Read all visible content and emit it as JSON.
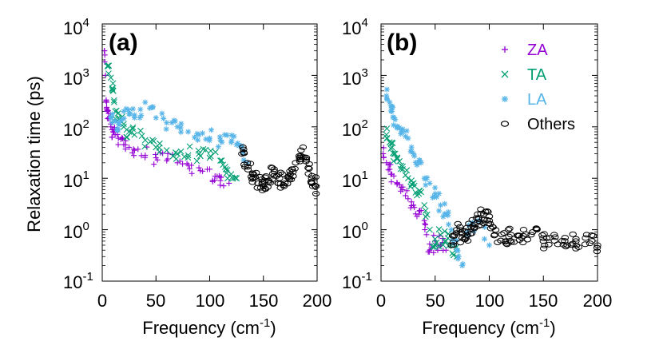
{
  "figure": {
    "ylabel": "Relaxation  time (ps)",
    "yaxis": {
      "scale": "log",
      "ylim": [
        0.1,
        10000
      ]
    }
  },
  "legend": {
    "placement": "top-right of panel (b)",
    "entries": [
      {
        "key": "ZA",
        "label": "ZA",
        "marker": "+",
        "color": "#9400d3"
      },
      {
        "key": "TA",
        "label": "TA",
        "marker": "x",
        "color": "#009e73"
      },
      {
        "key": "LA",
        "label": "LA",
        "marker": "*",
        "color": "#56b4e9"
      },
      {
        "key": "Others",
        "label": "Others",
        "marker": "o",
        "color": "#000000"
      }
    ]
  },
  "chart_data": [
    {
      "type": "scatter",
      "panel": "(a)",
      "xlabel": "Frequency (cm-1)",
      "xlabel_main": "Frequency (cm",
      "xlabel_sup": "-1",
      "xlabel_end": ")",
      "ylabel": "Relaxation  time (ps)",
      "xlim": [
        0,
        200
      ],
      "ylim": [
        0.1,
        10000
      ],
      "yscale": "log",
      "x_ticks": [
        "0",
        "50",
        "100",
        "150",
        "200"
      ],
      "y_ticks": [
        {
          "base": "10",
          "exp": "-1"
        },
        {
          "base": "10",
          "exp": "0"
        },
        {
          "base": "10",
          "exp": "1"
        },
        {
          "base": "10",
          "exp": "2"
        },
        {
          "base": "10",
          "exp": "3"
        },
        {
          "base": "10",
          "exp": "4"
        }
      ],
      "series": [
        {
          "name": "ZA",
          "x": [
            2,
            3,
            4,
            5,
            6,
            8,
            10,
            12,
            15,
            20,
            25,
            30,
            40,
            50,
            60,
            70,
            80,
            90,
            100,
            105,
            110,
            118
          ],
          "y": [
            3000,
            1000,
            300,
            200,
            150,
            100,
            80,
            70,
            60,
            45,
            40,
            35,
            28,
            25,
            22,
            20,
            18,
            16,
            15,
            11,
            9,
            8
          ]
        },
        {
          "name": "TA",
          "x": [
            5,
            8,
            10,
            12,
            15,
            20,
            25,
            30,
            40,
            50,
            60,
            70,
            80,
            90,
            100,
            110,
            115,
            120,
            125
          ],
          "y": [
            1500,
            900,
            700,
            200,
            150,
            100,
            80,
            70,
            55,
            40,
            35,
            30,
            28,
            30,
            25,
            22,
            15,
            12,
            10
          ]
        },
        {
          "name": "LA",
          "x": [
            8,
            12,
            15,
            20,
            25,
            30,
            40,
            50,
            60,
            70,
            80,
            90,
            100,
            110,
            120,
            125,
            130,
            135
          ],
          "y": [
            150,
            130,
            120,
            200,
            180,
            150,
            300,
            150,
            120,
            100,
            80,
            70,
            60,
            55,
            50,
            45,
            40,
            20
          ]
        },
        {
          "name": "Others",
          "x": [
            130,
            135,
            140,
            145,
            150,
            155,
            160,
            165,
            170,
            175,
            180,
            185,
            190,
            195,
            199
          ],
          "y": [
            30,
            20,
            12,
            8,
            7,
            9,
            15,
            10,
            8,
            12,
            20,
            35,
            25,
            10,
            7
          ]
        }
      ]
    },
    {
      "type": "scatter",
      "panel": "(b)",
      "xlabel": "Frequency (cm-1)",
      "xlabel_main": "Frequency (cm",
      "xlabel_sup": "-1",
      "xlabel_end": ")",
      "ylabel": "Relaxation  time (ps)",
      "xlim": [
        0,
        200
      ],
      "ylim": [
        0.1,
        10000
      ],
      "yscale": "log",
      "x_ticks": [
        "0",
        "50",
        "100",
        "150",
        "200"
      ],
      "y_ticks": [
        {
          "base": "10",
          "exp": "-1"
        },
        {
          "base": "10",
          "exp": "0"
        },
        {
          "base": "10",
          "exp": "1"
        },
        {
          "base": "10",
          "exp": "2"
        },
        {
          "base": "10",
          "exp": "3"
        },
        {
          "base": "10",
          "exp": "4"
        }
      ],
      "series": [
        {
          "name": "ZA",
          "x": [
            2,
            5,
            8,
            10,
            15,
            20,
            25,
            30,
            35,
            40,
            42,
            45,
            50,
            55,
            60
          ],
          "y": [
            30,
            20,
            15,
            12,
            8,
            6,
            4,
            3,
            2,
            1.5,
            0.8,
            0.4,
            0.6,
            0.5,
            0.4
          ]
        },
        {
          "name": "TA",
          "x": [
            5,
            8,
            10,
            12,
            15,
            20,
            25,
            30,
            35,
            40,
            45,
            50,
            55,
            60,
            65,
            70
          ],
          "y": [
            70,
            50,
            40,
            30,
            25,
            15,
            10,
            8,
            5,
            3,
            1,
            0.5,
            0.8,
            0.6,
            0.5,
            0.3
          ]
        },
        {
          "name": "LA",
          "x": [
            5,
            8,
            10,
            12,
            15,
            20,
            25,
            30,
            35,
            40,
            45,
            50,
            55,
            60,
            65,
            70,
            75,
            80,
            90,
            100
          ],
          "y": [
            400,
            300,
            200,
            150,
            100,
            80,
            60,
            30,
            20,
            10,
            8,
            5,
            3,
            2,
            1,
            0.4,
            0.2,
            0.8,
            1.5,
            0.5
          ]
        },
        {
          "name": "Others",
          "x": [
            65,
            70,
            75,
            80,
            85,
            90,
            95,
            100,
            105,
            115,
            120,
            130,
            140,
            150,
            160,
            170,
            180,
            190,
            200
          ],
          "y": [
            0.5,
            1,
            0.7,
            0.9,
            1.2,
            1.6,
            2,
            1.5,
            0.8,
            0.6,
            0.8,
            0.7,
            0.9,
            0.6,
            0.8,
            0.7,
            0.6,
            0.8,
            0.5
          ]
        }
      ]
    }
  ]
}
